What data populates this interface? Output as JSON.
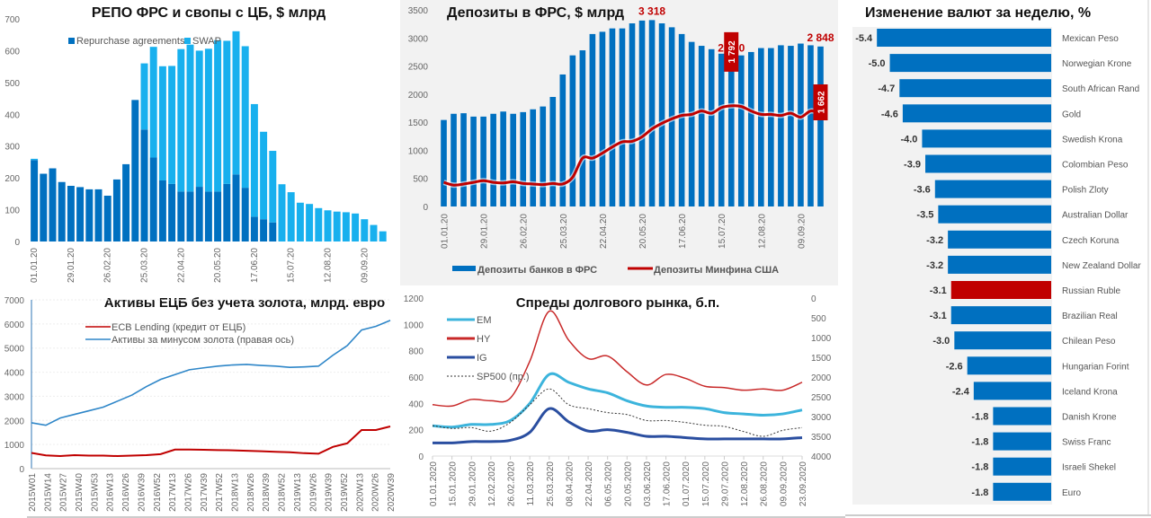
{
  "chart_data": [
    {
      "id": "repo",
      "type": "bar",
      "stacked": true,
      "title": "РЕПО ФРС и свопы с ЦБ, $ млрд",
      "ylim": [
        0,
        700
      ],
      "yticks": [
        0,
        100,
        200,
        300,
        400,
        500,
        600,
        700
      ],
      "xtick_labels": [
        "01.01.20",
        "29.01.20",
        "26.02.20",
        "25.03.20",
        "22.04.20",
        "20.05.20",
        "17.06.20",
        "15.07.20",
        "12.08.20",
        "09.09.20"
      ],
      "xtick_every": 4,
      "legend": "top-center",
      "series": [
        {
          "name": "Repurchase agreements",
          "color": "#0070c0",
          "values": [
            256,
            213,
            230,
            187,
            175,
            171,
            164,
            164,
            144,
            195,
            243,
            445,
            352,
            264,
            192,
            181,
            157,
            157,
            172,
            157,
            157,
            181,
            211,
            169,
            78,
            70,
            60,
            0,
            0,
            0,
            0,
            0,
            0,
            0,
            0,
            0,
            0,
            0,
            0,
            0
          ]
        },
        {
          "name": "SWAP",
          "color": "#18b0ee",
          "values": [
            4,
            0,
            0,
            0,
            0,
            0,
            0,
            0,
            0,
            0,
            0,
            0,
            208,
            348,
            359,
            371,
            448,
            462,
            428,
            449,
            476,
            450,
            450,
            445,
            354,
            275,
            225,
            180,
            155,
            122,
            118,
            105,
            98,
            94,
            92,
            88,
            70,
            52,
            32,
            0
          ]
        }
      ]
    },
    {
      "id": "deposits",
      "type": "bar",
      "title": "Депозиты в ФРС, $ млрд",
      "ylim": [
        0,
        3500
      ],
      "yticks": [
        0,
        500,
        1000,
        1500,
        2000,
        2500,
        3000,
        3500
      ],
      "xtick_labels": [
        "01.01.20",
        "29.01.20",
        "26.02.20",
        "25.03.20",
        "22.04.20",
        "20.05.20",
        "17.06.20",
        "15.07.20",
        "12.08.20",
        "09.09.20"
      ],
      "xtick_every": 4,
      "legend": "bottom",
      "series": [
        {
          "name": "Депозиты банков в ФРС",
          "color": "#0070c0",
          "kind": "bar",
          "values": [
            1540,
            1650,
            1660,
            1600,
            1600,
            1650,
            1690,
            1650,
            1680,
            1730,
            1780,
            1950,
            2350,
            2690,
            2780,
            3070,
            3110,
            3170,
            3170,
            3260,
            3310,
            3318,
            3260,
            3190,
            3070,
            2930,
            2860,
            2800,
            2720,
            2660,
            2690,
            2750,
            2820,
            2820,
            2870,
            2860,
            2900,
            2870,
            2848
          ]
        },
        {
          "name": "Депозиты Минфина США",
          "color": "#c00000",
          "kind": "line",
          "values": [
            430,
            380,
            400,
            430,
            460,
            430,
            420,
            440,
            410,
            400,
            390,
            410,
            400,
            520,
            860,
            860,
            950,
            1060,
            1150,
            1160,
            1240,
            1380,
            1480,
            1560,
            1620,
            1640,
            1700,
            1660,
            1760,
            1792,
            1780,
            1700,
            1640,
            1640,
            1620,
            1660,
            1590,
            1700,
            1662
          ]
        }
      ],
      "annotations": [
        {
          "label": "3 318",
          "series": 0,
          "index": 21
        },
        {
          "label": "2 660",
          "series": 0,
          "index": 29
        },
        {
          "label": "2 848",
          "series": 0,
          "index": 38
        },
        {
          "label": "1 792",
          "series": 1,
          "index": 29,
          "boxed": true
        },
        {
          "label": "1 662",
          "series": 1,
          "index": 38,
          "boxed": true
        }
      ]
    },
    {
      "id": "fx",
      "type": "bar",
      "orientation": "horizontal",
      "title": "Изменение валют за неделю, %",
      "categories": [
        "Mexican Peso",
        "Norwegian Krone",
        "South African Rand",
        "Gold",
        "Swedish Krona",
        "Colombian Peso",
        "Polish Zloty",
        "Australian Dollar",
        "Czech Koruna",
        "New Zealand Dollar",
        "Russian Ruble",
        "Brazilian Real",
        "Chilean Peso",
        "Hungarian Forint",
        "Iceland Krona",
        "Danish Krone",
        "Swiss Franc",
        "Israeli Shekel",
        "Euro"
      ],
      "values": [
        -5.4,
        -5.0,
        -4.7,
        -4.6,
        -4.0,
        -3.9,
        -3.6,
        -3.5,
        -3.2,
        -3.2,
        -3.1,
        -3.1,
        -3.0,
        -2.6,
        -2.4,
        -1.8,
        -1.8,
        -1.8,
        -1.8
      ],
      "value_labels": [
        "-5.4",
        "-5.0",
        "-4.7",
        "-4.6",
        "-4.0",
        "-3.9",
        "-3.6",
        "-3.5",
        "-3.2",
        "-3.2",
        "-3.1",
        "-3.1",
        "-3.0",
        "-2.6",
        "-2.4",
        "-1.8",
        "-1.8",
        "-1.8",
        "-1.8"
      ],
      "bar_color": "#0070c0",
      "highlight": {
        "category": "Russian Ruble",
        "color": "#c00000"
      },
      "xlim": [
        -5.6,
        0
      ]
    },
    {
      "id": "ecb",
      "type": "line",
      "title": "Активы ЕЦБ без учета золота, млрд. евро",
      "ylim": [
        0,
        7000
      ],
      "yticks": [
        0,
        1000,
        2000,
        3000,
        4000,
        5000,
        6000,
        7000
      ],
      "xtick_labels": [
        "2015W01",
        "2015W14",
        "2015W27",
        "2015W40",
        "2015W53",
        "2016W13",
        "2016W26",
        "2016W39",
        "2016W52",
        "2017W13",
        "2017W26",
        "2017W39",
        "2017W52",
        "2018W13",
        "2018W26",
        "2018W39",
        "2018W52",
        "2019W13",
        "2019W26",
        "2019W39",
        "2019W52",
        "2020W13",
        "2020W26",
        "2020W39"
      ],
      "legend": "top-left",
      "series": [
        {
          "name": "ECB Lending (кредит от ЕЦБ)",
          "color": "#c00000",
          "values": [
            650,
            550,
            520,
            560,
            540,
            540,
            520,
            540,
            560,
            600,
            790,
            790,
            780,
            770,
            760,
            740,
            720,
            700,
            680,
            640,
            620,
            900,
            1050,
            1600,
            1600,
            1750
          ]
        },
        {
          "name": "Активы за минусом золота (правая ось)",
          "color": "#2e86c8",
          "values": [
            1900,
            1800,
            2100,
            2250,
            2400,
            2550,
            2800,
            3050,
            3400,
            3700,
            3900,
            4100,
            4180,
            4250,
            4300,
            4320,
            4280,
            4250,
            4200,
            4220,
            4250,
            4700,
            5100,
            5750,
            5900,
            6150
          ]
        }
      ]
    },
    {
      "id": "spreads",
      "type": "line",
      "title": "Спреды долгового рынка, б.п.",
      "ylim": [
        0,
        1200
      ],
      "yticks": [
        0,
        200,
        400,
        600,
        800,
        1000,
        1200
      ],
      "y2lim": [
        4000,
        0
      ],
      "y2ticks": [
        0,
        500,
        1000,
        1500,
        2000,
        2500,
        3000,
        3500,
        4000
      ],
      "xtick_labels": [
        "01.01.2020",
        "15.01.2020",
        "29.01.2020",
        "12.02.2020",
        "26.02.2020",
        "11.03.2020",
        "25.03.2020",
        "08.04.2020",
        "22.04.2020",
        "06.05.2020",
        "20.05.2020",
        "03.06.2020",
        "17.06.2020",
        "01.07.2020",
        "15.07.2020",
        "29.07.2020",
        "12.08.2020",
        "26.08.2020",
        "09.09.2020",
        "23.09.2020"
      ],
      "legend": "top-left",
      "series": [
        {
          "name": "EM",
          "color": "#3cb4dc",
          "values": [
            230,
            220,
            240,
            240,
            270,
            400,
            620,
            560,
            510,
            480,
            420,
            380,
            370,
            370,
            360,
            330,
            320,
            310,
            320,
            350
          ]
        },
        {
          "name": "HY",
          "color": "#c82828",
          "values": [
            390,
            380,
            430,
            420,
            440,
            720,
            1100,
            880,
            740,
            760,
            640,
            540,
            620,
            590,
            530,
            520,
            500,
            510,
            500,
            560
          ]
        },
        {
          "name": "IG",
          "color": "#2a4ea0",
          "values": [
            100,
            100,
            110,
            110,
            120,
            180,
            360,
            260,
            190,
            200,
            180,
            150,
            150,
            140,
            130,
            130,
            130,
            130,
            130,
            140
          ]
        },
        {
          "name": "SP500 (пр.)",
          "color": "#333333",
          "dashed": true,
          "axis": "right",
          "values": [
            3230,
            3300,
            3280,
            3370,
            3150,
            2700,
            2300,
            2700,
            2800,
            2900,
            2950,
            3100,
            3100,
            3150,
            3220,
            3250,
            3380,
            3500,
            3350,
            3280
          ]
        }
      ]
    }
  ]
}
